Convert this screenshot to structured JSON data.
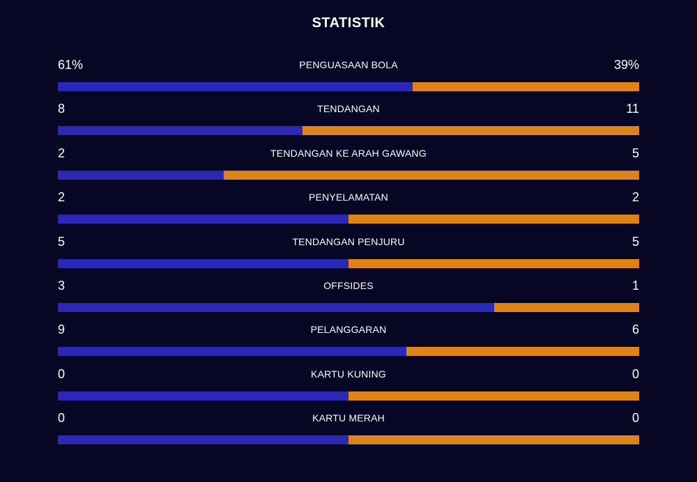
{
  "title": "STATISTIK",
  "colors": {
    "background": "#080625",
    "home": "#2a28b5",
    "away": "#dc831b",
    "text": "#ffffff"
  },
  "stats": [
    {
      "label": "PENGUASAAN BOLA",
      "home": "61%",
      "away": "39%",
      "home_share": 0.61
    },
    {
      "label": "TENDANGAN",
      "home": "8",
      "away": "11",
      "home_share": 0.4211
    },
    {
      "label": "TENDANGAN KE ARAH GAWANG",
      "home": "2",
      "away": "5",
      "home_share": 0.2857
    },
    {
      "label": "PENYELAMATAN",
      "home": "2",
      "away": "2",
      "home_share": 0.5
    },
    {
      "label": "TENDANGAN PENJURU",
      "home": "5",
      "away": "5",
      "home_share": 0.5
    },
    {
      "label": "OFFSIDES",
      "home": "3",
      "away": "1",
      "home_share": 0.75
    },
    {
      "label": "PELANGGARAN",
      "home": "9",
      "away": "6",
      "home_share": 0.6
    },
    {
      "label": "KARTU KUNING",
      "home": "0",
      "away": "0",
      "home_share": 0.5
    },
    {
      "label": "KARTU MERAH",
      "home": "0",
      "away": "0",
      "home_share": 0.5
    }
  ]
}
